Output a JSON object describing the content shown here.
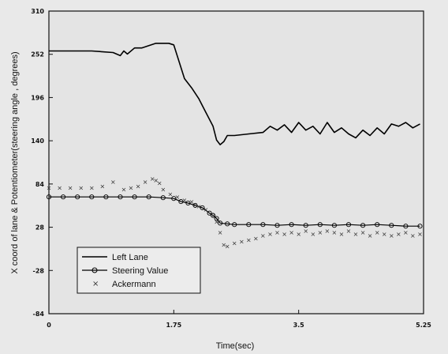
{
  "chart_data": {
    "type": "line",
    "xlabel": "Time(sec)",
    "ylabel": "X coord of lane & Potentiometer(steering angle , degrees)",
    "xlim": [
      0,
      5.25
    ],
    "ylim": [
      -84,
      310
    ],
    "x_ticks": [
      "0",
      "1.75",
      "3.5",
      "5.25"
    ],
    "y_ticks": [
      "310",
      "252",
      "196",
      "140",
      "84",
      "28",
      "-28",
      "-84"
    ],
    "grid": false,
    "legend_position": "bottom-left",
    "series": [
      {
        "name": "Left Lane",
        "style": "line",
        "color": "#000000",
        "x": [
          0,
          0.3,
          0.6,
          0.9,
          1.0,
          1.05,
          1.1,
          1.2,
          1.3,
          1.5,
          1.6,
          1.68,
          1.75,
          1.9,
          2.0,
          2.1,
          2.2,
          2.3,
          2.35,
          2.4,
          2.45,
          2.5,
          2.6,
          2.8,
          3.0,
          3.1,
          3.2,
          3.3,
          3.4,
          3.5,
          3.6,
          3.7,
          3.8,
          3.9,
          4.0,
          4.1,
          4.2,
          4.3,
          4.4,
          4.5,
          4.6,
          4.7,
          4.8,
          4.9,
          5.0,
          5.1,
          5.2
        ],
        "y": [
          258,
          258,
          258,
          256,
          252,
          258,
          254,
          262,
          262,
          268,
          268,
          268,
          266,
          222,
          210,
          196,
          178,
          160,
          142,
          136,
          140,
          148,
          148,
          150,
          152,
          160,
          155,
          162,
          152,
          165,
          155,
          160,
          150,
          165,
          152,
          158,
          150,
          145,
          155,
          148,
          158,
          150,
          163,
          160,
          165,
          158,
          163
        ]
      },
      {
        "name": "Steering Value",
        "style": "line-circle",
        "color": "#000000",
        "x": [
          0,
          0.2,
          0.4,
          0.6,
          0.8,
          1.0,
          1.2,
          1.4,
          1.6,
          1.75,
          1.85,
          1.95,
          2.05,
          2.15,
          2.25,
          2.3,
          2.35,
          2.4,
          2.5,
          2.6,
          2.8,
          3.0,
          3.2,
          3.4,
          3.6,
          3.8,
          4.0,
          4.2,
          4.4,
          4.6,
          4.8,
          5.0,
          5.2
        ],
        "y": [
          68,
          68,
          68,
          68,
          68,
          68,
          68,
          68,
          67,
          66,
          62,
          60,
          57,
          54,
          47,
          44,
          40,
          34,
          33,
          32,
          32,
          32,
          31,
          32,
          31,
          32,
          31,
          32,
          31,
          32,
          31,
          30,
          30
        ]
      },
      {
        "name": "Ackermann",
        "style": "scatter-x",
        "color": "#000000",
        "x": [
          0,
          0.15,
          0.3,
          0.45,
          0.6,
          0.75,
          0.9,
          1.05,
          1.15,
          1.25,
          1.35,
          1.45,
          1.5,
          1.55,
          1.6,
          1.7,
          1.8,
          1.9,
          2.0,
          2.05,
          2.1,
          2.2,
          2.3,
          2.35,
          2.4,
          2.45,
          2.5,
          2.6,
          2.7,
          2.8,
          2.9,
          3.0,
          3.1,
          3.2,
          3.3,
          3.4,
          3.5,
          3.6,
          3.7,
          3.8,
          3.9,
          4.0,
          4.1,
          4.2,
          4.3,
          4.4,
          4.5,
          4.6,
          4.7,
          4.8,
          4.9,
          5.0,
          5.1,
          5.2
        ],
        "y": [
          80,
          80,
          80,
          80,
          80,
          82,
          88,
          78,
          80,
          82,
          88,
          92,
          90,
          86,
          78,
          72,
          68,
          64,
          62,
          58,
          56,
          52,
          44,
          36,
          22,
          6,
          4,
          8,
          10,
          12,
          14,
          18,
          20,
          22,
          20,
          22,
          20,
          24,
          20,
          22,
          24,
          22,
          20,
          24,
          20,
          22,
          18,
          22,
          20,
          18,
          20,
          22,
          18,
          20
        ]
      }
    ]
  }
}
